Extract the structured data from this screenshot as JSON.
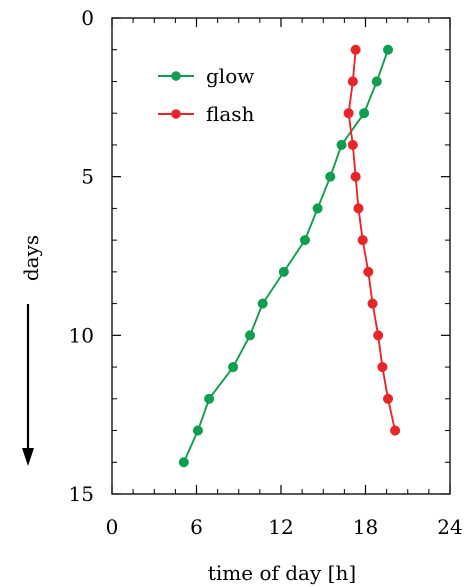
{
  "chart_data": {
    "type": "line",
    "xlabel": "time of day [h]",
    "ylabel": "days",
    "xlim": [
      0,
      24
    ],
    "ylim": [
      0,
      15
    ],
    "y_inverted": true,
    "x_ticks": [
      0,
      6,
      12,
      18,
      24
    ],
    "y_ticks": [
      0,
      5,
      10,
      15
    ],
    "grid": false,
    "legend_position": "top-left",
    "series": [
      {
        "name": "glow",
        "color": "#0f9d4f",
        "points": [
          {
            "x": 19.6,
            "y": 1
          },
          {
            "x": 18.8,
            "y": 2
          },
          {
            "x": 17.9,
            "y": 3
          },
          {
            "x": 16.3,
            "y": 4
          },
          {
            "x": 15.5,
            "y": 5
          },
          {
            "x": 14.6,
            "y": 6
          },
          {
            "x": 13.7,
            "y": 7
          },
          {
            "x": 12.2,
            "y": 8
          },
          {
            "x": 10.7,
            "y": 9
          },
          {
            "x": 9.8,
            "y": 10
          },
          {
            "x": 8.6,
            "y": 11
          },
          {
            "x": 6.9,
            "y": 12
          },
          {
            "x": 6.1,
            "y": 13
          },
          {
            "x": 5.1,
            "y": 14
          }
        ]
      },
      {
        "name": "flash",
        "color": "#e8262a",
        "points": [
          {
            "x": 17.3,
            "y": 1
          },
          {
            "x": 17.1,
            "y": 2
          },
          {
            "x": 16.8,
            "y": 3
          },
          {
            "x": 17.1,
            "y": 4
          },
          {
            "x": 17.3,
            "y": 5
          },
          {
            "x": 17.5,
            "y": 6
          },
          {
            "x": 17.8,
            "y": 7
          },
          {
            "x": 18.2,
            "y": 8
          },
          {
            "x": 18.5,
            "y": 9
          },
          {
            "x": 18.9,
            "y": 10
          },
          {
            "x": 19.2,
            "y": 11
          },
          {
            "x": 19.6,
            "y": 12
          },
          {
            "x": 20.1,
            "y": 13
          }
        ]
      }
    ]
  }
}
